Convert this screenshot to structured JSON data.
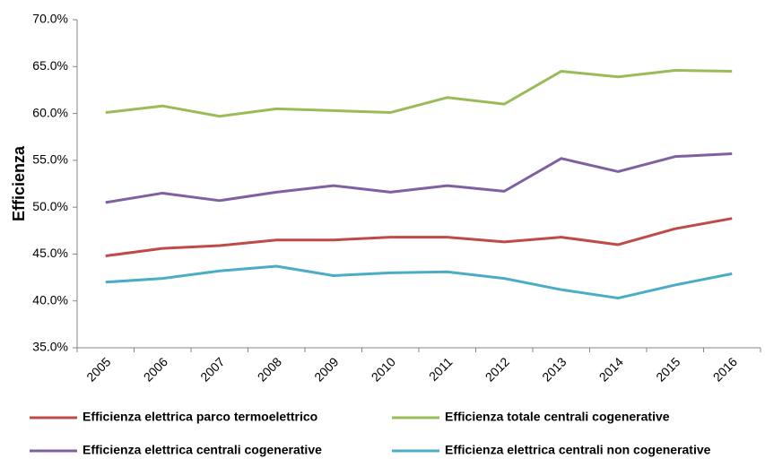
{
  "chart_data": {
    "type": "line",
    "y_label": "Efficienza",
    "categories": [
      "2005",
      "2006",
      "2007",
      "2008",
      "2009",
      "2010",
      "2011",
      "2012",
      "2013",
      "2014",
      "2015",
      "2016"
    ],
    "series": [
      {
        "name": "Efficienza elettrica parco termoelettrico",
        "color": "#be4b48",
        "values": [
          44.8,
          45.6,
          45.9,
          46.5,
          46.5,
          46.8,
          46.8,
          46.3,
          46.8,
          46.0,
          47.7,
          48.8
        ]
      },
      {
        "name": "Efficienza totale centrali cogenerative",
        "color": "#9bbb59",
        "values": [
          60.1,
          60.8,
          59.7,
          60.5,
          60.3,
          60.1,
          61.7,
          61.0,
          64.5,
          63.9,
          64.6,
          64.5
        ]
      },
      {
        "name": "Efficienza elettrica centrali cogenerative",
        "color": "#7f60a1",
        "values": [
          50.5,
          51.5,
          50.7,
          51.6,
          52.3,
          51.6,
          52.3,
          51.7,
          55.2,
          53.8,
          55.4,
          55.7
        ]
      },
      {
        "name": "Efficienza elettrica centrali non cogenerative",
        "color": "#4bacc6",
        "values": [
          42.0,
          42.4,
          43.2,
          43.7,
          42.7,
          43.0,
          43.1,
          42.4,
          41.2,
          40.3,
          41.7,
          42.9
        ]
      }
    ],
    "ylim": [
      35,
      70
    ],
    "yticks": [
      {
        "value": 35,
        "label": "35.0%"
      },
      {
        "value": 40,
        "label": "40.0%"
      },
      {
        "value": 45,
        "label": "45.0%"
      },
      {
        "value": 50,
        "label": "50.0%"
      },
      {
        "value": 55,
        "label": "55.0%"
      },
      {
        "value": 60,
        "label": "60.0%"
      },
      {
        "value": 65,
        "label": "65.0%"
      },
      {
        "value": 70,
        "label": "70.0%"
      }
    ],
    "grid": false,
    "legend": "bottom"
  }
}
